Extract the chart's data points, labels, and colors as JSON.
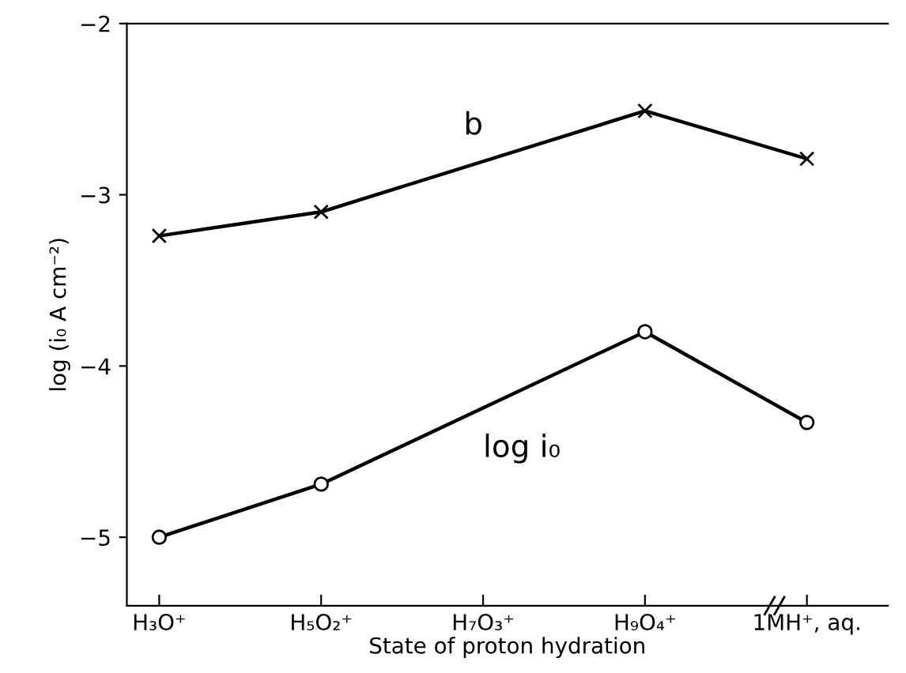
{
  "chart_data": {
    "type": "line",
    "xlabel": "State of proton hydration",
    "ylabel": "log (i₀ A cm⁻²)",
    "categories": [
      "H₃O⁺",
      "H₅O₂⁺",
      "H₇O₃⁺",
      "H₉O₄⁺",
      "1MH⁺, aq."
    ],
    "series": [
      {
        "name": "b",
        "color": "#000000",
        "marker": "cross",
        "values": [
          -3.24,
          -3.1,
          null,
          -2.51,
          -2.79
        ]
      },
      {
        "name": "log i₀",
        "color": "#000000",
        "marker": "circle",
        "values": [
          -5.0,
          -4.69,
          null,
          -3.8,
          -4.33
        ]
      }
    ],
    "ylim": [
      -5.4,
      -2
    ],
    "yticks": [
      -5,
      -4,
      -3,
      -2
    ],
    "grid": false,
    "legend": false,
    "line_style": "solid"
  }
}
